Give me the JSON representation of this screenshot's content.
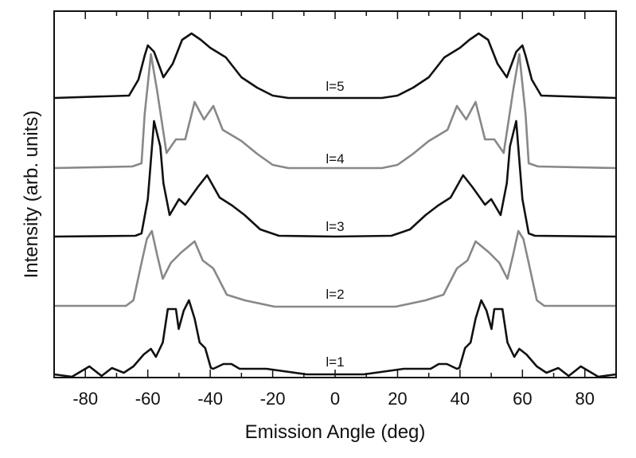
{
  "chart_data": {
    "type": "line",
    "title": "",
    "xlabel": "Emission Angle (deg)",
    "ylabel": "Intensity (arb. units)",
    "xlim": [
      -90,
      90
    ],
    "ylim": [
      0,
      460
    ],
    "xticks": [
      -80,
      -60,
      -40,
      -20,
      0,
      20,
      40,
      60,
      80
    ],
    "xtick_labels": [
      "-80",
      "-60",
      "-40",
      "-20",
      "0",
      "20",
      "40",
      "60",
      "80"
    ],
    "grid": false,
    "symmetric_about_zero": true,
    "series": [
      {
        "name": "l=5",
        "label": "l=5",
        "color": "#111111",
        "label_angle": 0,
        "label_value": 360,
        "points": [
          [
            -90,
            351
          ],
          [
            -66,
            354
          ],
          [
            -63,
            374
          ],
          [
            -61,
            404
          ],
          [
            -60,
            417
          ],
          [
            -58,
            409
          ],
          [
            -55,
            377
          ],
          [
            -52,
            394
          ],
          [
            -49,
            424
          ],
          [
            -46,
            432
          ],
          [
            -43,
            424
          ],
          [
            -40,
            414
          ],
          [
            -35,
            402
          ],
          [
            -30,
            377
          ],
          [
            -25,
            364
          ],
          [
            -20,
            354
          ],
          [
            -15,
            351
          ],
          [
            0,
            351
          ]
        ]
      },
      {
        "name": "l=4",
        "label": "l=4",
        "color": "#888888",
        "label_angle": 0,
        "label_value": 269,
        "points": [
          [
            -90,
            263
          ],
          [
            -65,
            265
          ],
          [
            -62,
            269
          ],
          [
            -61,
            330
          ],
          [
            -59,
            406
          ],
          [
            -57,
            360
          ],
          [
            -54,
            282
          ],
          [
            -51,
            299
          ],
          [
            -48,
            299
          ],
          [
            -45,
            346
          ],
          [
            -42,
            324
          ],
          [
            -39,
            341
          ],
          [
            -36,
            311
          ],
          [
            -30,
            297
          ],
          [
            -25,
            281
          ],
          [
            -20,
            267
          ],
          [
            -15,
            263
          ],
          [
            0,
            263
          ]
        ]
      },
      {
        "name": "l=3",
        "label": "l=3",
        "color": "#111111",
        "label_angle": 0,
        "label_value": 184,
        "points": [
          [
            -90,
            177
          ],
          [
            -64,
            178
          ],
          [
            -62,
            181
          ],
          [
            -60,
            224
          ],
          [
            -58,
            322
          ],
          [
            -56,
            290
          ],
          [
            -55,
            244
          ],
          [
            -53,
            204
          ],
          [
            -50,
            224
          ],
          [
            -48,
            217
          ],
          [
            -44,
            239
          ],
          [
            -41,
            254
          ],
          [
            -37,
            226
          ],
          [
            -33,
            216
          ],
          [
            -29,
            204
          ],
          [
            -24,
            186
          ],
          [
            -18,
            178
          ],
          [
            0,
            177
          ]
        ]
      },
      {
        "name": "l=2",
        "label": "l=2",
        "color": "#888888",
        "label_angle": 0,
        "label_value": 99,
        "points": [
          [
            -90,
            90
          ],
          [
            -67,
            90
          ],
          [
            -64.6,
            97
          ],
          [
            -62,
            144
          ],
          [
            -60.3,
            174
          ],
          [
            -58.7,
            184
          ],
          [
            -57,
            154
          ],
          [
            -55.2,
            124
          ],
          [
            -52.6,
            144
          ],
          [
            -49.3,
            157
          ],
          [
            -45,
            171
          ],
          [
            -42.4,
            147
          ],
          [
            -39,
            137
          ],
          [
            -34.7,
            104
          ],
          [
            -29,
            97
          ],
          [
            -19.4,
            89
          ],
          [
            0,
            89
          ]
        ]
      },
      {
        "name": "l=1",
        "label": "l=1",
        "color": "#111111",
        "label_angle": 0,
        "label_value": 14,
        "points": [
          [
            -90,
            4
          ],
          [
            -84.3,
            1
          ],
          [
            -78.7,
            14
          ],
          [
            -74.8,
            2
          ],
          [
            -71.5,
            12
          ],
          [
            -67.7,
            6
          ],
          [
            -64.6,
            14
          ],
          [
            -61.3,
            29
          ],
          [
            -59,
            36
          ],
          [
            -57.4,
            26
          ],
          [
            -55.2,
            44
          ],
          [
            -53.6,
            86
          ],
          [
            -51,
            86
          ],
          [
            -50.1,
            61
          ],
          [
            -48.5,
            84
          ],
          [
            -46.8,
            97
          ],
          [
            -45,
            74
          ],
          [
            -43.4,
            44
          ],
          [
            -41.6,
            37
          ],
          [
            -39.8,
            12
          ],
          [
            -39,
            11
          ],
          [
            -35.8,
            17
          ],
          [
            -33.2,
            17
          ],
          [
            -30.6,
            11
          ],
          [
            -22,
            11
          ],
          [
            -9.2,
            4
          ],
          [
            0,
            4
          ]
        ]
      }
    ]
  }
}
